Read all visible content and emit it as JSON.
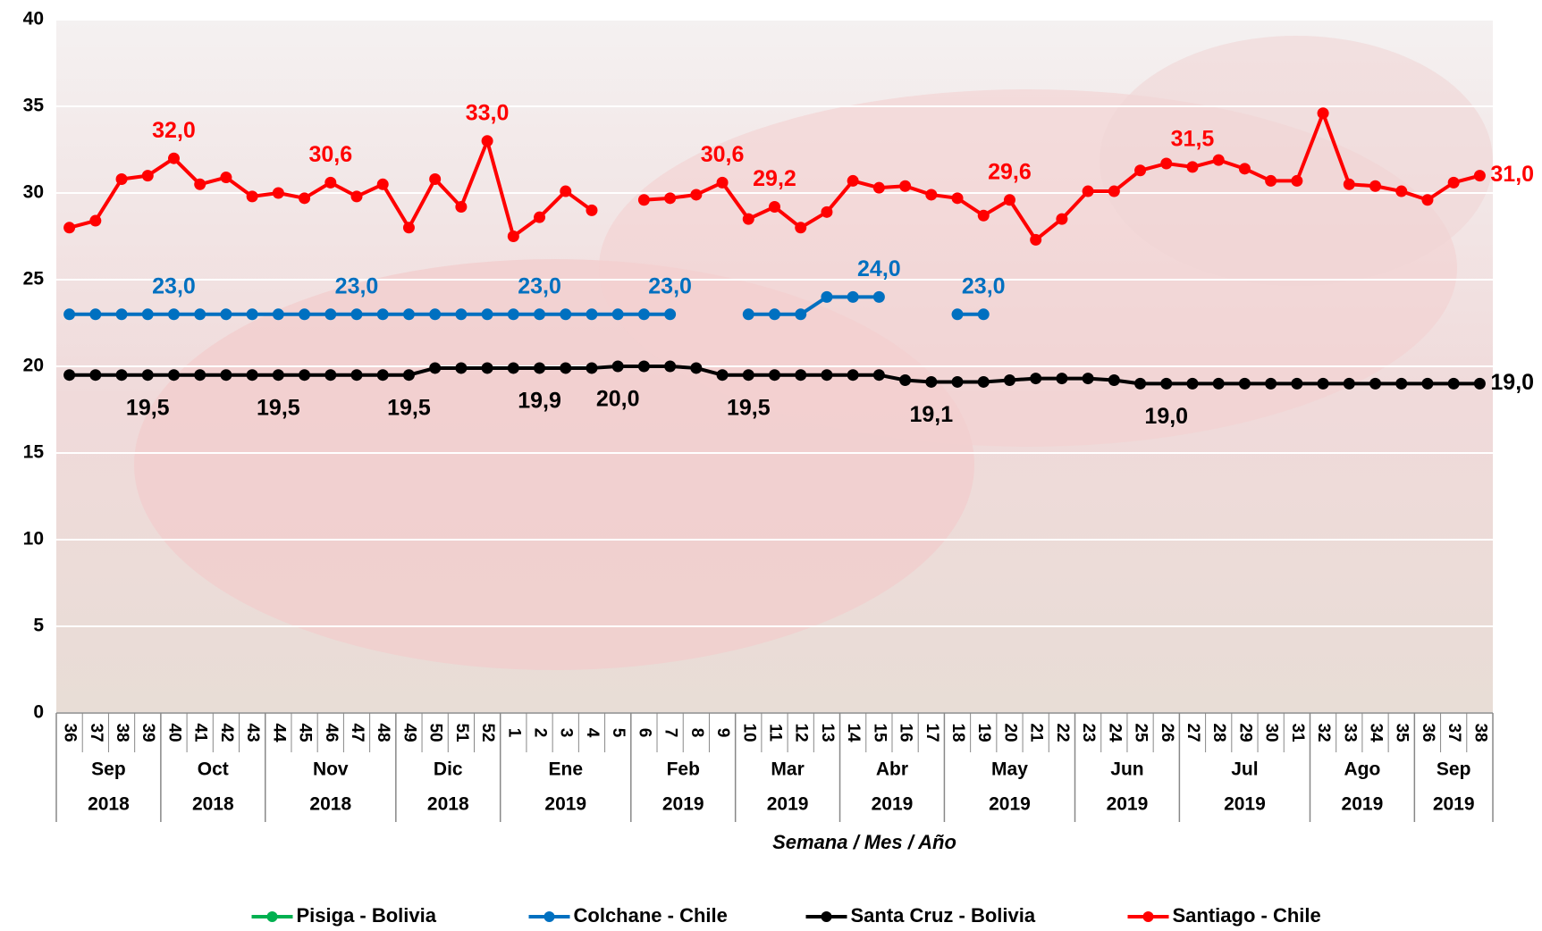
{
  "chart_data": {
    "type": "line",
    "x_label": "Semana / Mes / Año",
    "ylim": [
      0,
      40
    ],
    "yticks": [
      0,
      5,
      10,
      15,
      20,
      25,
      30,
      35,
      40
    ],
    "grid": true,
    "legend": "bottom",
    "groups": [
      {
        "month": "Sep",
        "year": "2018",
        "weeks": [
          "36",
          "37",
          "38",
          "39"
        ]
      },
      {
        "month": "Oct",
        "year": "2018",
        "weeks": [
          "40",
          "41",
          "42",
          "43"
        ]
      },
      {
        "month": "Nov",
        "year": "2018",
        "weeks": [
          "44",
          "45",
          "46",
          "47",
          "48"
        ]
      },
      {
        "month": "Dic",
        "year": "2018",
        "weeks": [
          "49",
          "50",
          "51",
          "52"
        ]
      },
      {
        "month": "Ene",
        "year": "2019",
        "weeks": [
          "1",
          "2",
          "3",
          "4",
          "5"
        ]
      },
      {
        "month": "Feb",
        "year": "2019",
        "weeks": [
          "6",
          "7",
          "8",
          "9"
        ]
      },
      {
        "month": "Mar",
        "year": "2019",
        "weeks": [
          "10",
          "11",
          "12",
          "13"
        ]
      },
      {
        "month": "Abr",
        "year": "2019",
        "weeks": [
          "14",
          "15",
          "16",
          "17"
        ]
      },
      {
        "month": "May",
        "year": "2019",
        "weeks": [
          "18",
          "19",
          "20",
          "21",
          "22"
        ]
      },
      {
        "month": "Jun",
        "year": "2019",
        "weeks": [
          "23",
          "24",
          "25",
          "26"
        ]
      },
      {
        "month": "Jul",
        "year": "2019",
        "weeks": [
          "27",
          "28",
          "29",
          "30",
          "31"
        ]
      },
      {
        "month": "Ago",
        "year": "2019",
        "weeks": [
          "32",
          "33",
          "34",
          "35"
        ]
      },
      {
        "month": "Sep",
        "year": "2019",
        "weeks": [
          "36",
          "37",
          "38"
        ]
      }
    ],
    "series": [
      {
        "name": "Pisiga - Bolivia",
        "color": "#00b050",
        "label_position": "above",
        "values": [
          null,
          null,
          null,
          null,
          null,
          null,
          null,
          null,
          null,
          null,
          null,
          null,
          null,
          null,
          null,
          null,
          null,
          null,
          null,
          null,
          null,
          null,
          null,
          null,
          null,
          null,
          null,
          null,
          null,
          null,
          null,
          null,
          null,
          null,
          null,
          null,
          null,
          null,
          null,
          null,
          null,
          null,
          null,
          null,
          null,
          null,
          null,
          null,
          null,
          null,
          null,
          null,
          null,
          null,
          null
        ]
      },
      {
        "name": "Colchane - Chile",
        "color": "#0070c0",
        "label_position": "above",
        "values": [
          23.0,
          23.0,
          23.0,
          23.0,
          23.0,
          23.0,
          23.0,
          23.0,
          23.0,
          23.0,
          23.0,
          23.0,
          23.0,
          23.0,
          23.0,
          23.0,
          23.0,
          23.0,
          23.0,
          23.0,
          23.0,
          23.0,
          23.0,
          23.0,
          null,
          null,
          23.0,
          23.0,
          23.0,
          24.0,
          24.0,
          24.0,
          null,
          null,
          23.0,
          23.0,
          null,
          null,
          null,
          null,
          null,
          null,
          null,
          null,
          null,
          null,
          null,
          null,
          null,
          null,
          null,
          null,
          null,
          null,
          null
        ],
        "value_labels": [
          null,
          null,
          null,
          null,
          "23,0",
          null,
          null,
          null,
          null,
          null,
          null,
          "23,0",
          null,
          null,
          null,
          null,
          null,
          null,
          "23,0",
          null,
          null,
          null,
          null,
          "23,0",
          null,
          null,
          null,
          null,
          null,
          null,
          null,
          "24,0",
          null,
          null,
          null,
          "23,0",
          null,
          null,
          null,
          null,
          null,
          null,
          null,
          null,
          null,
          null,
          null,
          null,
          null,
          null,
          null,
          null,
          null,
          null,
          null
        ]
      },
      {
        "name": "Santa Cruz - Bolivia",
        "color": "#000000",
        "label_position": "below",
        "values": [
          19.5,
          19.5,
          19.5,
          19.5,
          19.5,
          19.5,
          19.5,
          19.5,
          19.5,
          19.5,
          19.5,
          19.5,
          19.5,
          19.5,
          19.9,
          19.9,
          19.9,
          19.9,
          19.9,
          19.9,
          19.9,
          20.0,
          20.0,
          20.0,
          19.9,
          19.5,
          19.5,
          19.5,
          19.5,
          19.5,
          19.5,
          19.5,
          19.2,
          19.1,
          19.1,
          19.1,
          19.2,
          19.3,
          19.3,
          19.3,
          19.2,
          19.0,
          19.0,
          19.0,
          19.0,
          19.0,
          19.0,
          19.0,
          19.0,
          19.0,
          19.0,
          19.0,
          19.0,
          19.0,
          19.0
        ],
        "value_labels": [
          null,
          null,
          null,
          "19,5",
          null,
          null,
          null,
          null,
          "19,5",
          null,
          null,
          null,
          null,
          "19,5",
          null,
          null,
          null,
          null,
          "19,9",
          null,
          null,
          "20,0",
          null,
          null,
          null,
          null,
          "19,5",
          null,
          null,
          null,
          null,
          null,
          null,
          "19,1",
          null,
          null,
          null,
          null,
          null,
          null,
          null,
          null,
          "19,0",
          null,
          null,
          null,
          null,
          null,
          null,
          null,
          null,
          null,
          null,
          null,
          "19,0"
        ]
      },
      {
        "name": "Santiago - Chile",
        "color": "#ff0000",
        "label_position": "above",
        "values": [
          28.0,
          28.4,
          30.8,
          31.0,
          32.0,
          30.5,
          30.9,
          29.8,
          30.0,
          29.7,
          30.6,
          29.8,
          30.5,
          28.0,
          30.8,
          29.2,
          33.0,
          27.5,
          28.6,
          30.1,
          29.0,
          null,
          29.6,
          29.7,
          29.9,
          30.6,
          28.5,
          29.2,
          28.0,
          28.9,
          30.7,
          30.3,
          30.4,
          29.9,
          29.7,
          28.7,
          29.6,
          27.3,
          28.5,
          30.1,
          30.1,
          31.3,
          31.7,
          31.5,
          31.9,
          31.4,
          30.7,
          30.7,
          34.6,
          30.5,
          30.4,
          30.1,
          29.6,
          30.6,
          31.0
        ],
        "value_labels": [
          null,
          null,
          null,
          null,
          "32,0",
          null,
          null,
          null,
          null,
          null,
          "30,6",
          null,
          null,
          null,
          null,
          null,
          "33,0",
          null,
          null,
          null,
          null,
          null,
          null,
          null,
          null,
          "30,6",
          null,
          "29,2",
          null,
          null,
          null,
          null,
          null,
          null,
          null,
          null,
          "29,6",
          null,
          null,
          null,
          null,
          null,
          null,
          "31,5",
          null,
          null,
          null,
          null,
          null,
          null,
          null,
          null,
          null,
          null,
          "31,0"
        ]
      }
    ]
  }
}
